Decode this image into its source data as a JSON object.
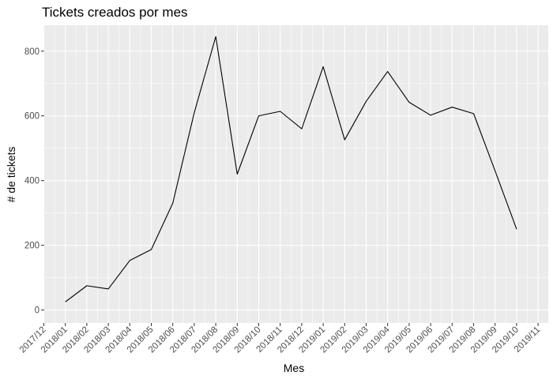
{
  "chart_data": {
    "type": "line",
    "title": "Tickets creados por mes",
    "xlabel": "Mes",
    "ylabel": "# de tickets",
    "x_tick_labels": [
      "2017/12",
      "2018/01",
      "2018/02",
      "2018/03",
      "2018/04",
      "2018/05",
      "2018/06",
      "2018/07",
      "2018/08",
      "2018/09",
      "2018/10",
      "2018/11",
      "2018/12",
      "2019/01",
      "2019/02",
      "2019/03",
      "2019/04",
      "2019/05",
      "2019/06",
      "2019/07",
      "2019/08",
      "2019/09",
      "2019/10",
      "2019/11"
    ],
    "y_ticks": [
      0,
      200,
      400,
      600,
      800
    ],
    "ylim": [
      -40,
      880
    ],
    "grid": true,
    "series": [
      {
        "x": [
          "2018/01",
          "2018/02",
          "2018/03",
          "2018/04",
          "2018/05",
          "2018/06",
          "2018/07",
          "2018/08",
          "2018/09",
          "2018/10",
          "2018/11",
          "2018/12",
          "2019/01",
          "2019/02",
          "2019/03",
          "2019/04",
          "2019/05",
          "2019/06",
          "2019/07",
          "2019/08",
          "2019/09",
          "2019/10"
        ],
        "values": [
          25,
          75,
          65,
          153,
          187,
          330,
          610,
          845,
          420,
          600,
          614,
          560,
          752,
          526,
          645,
          737,
          642,
          602,
          627,
          607,
          430,
          250
        ],
        "color": "#000000"
      }
    ]
  }
}
